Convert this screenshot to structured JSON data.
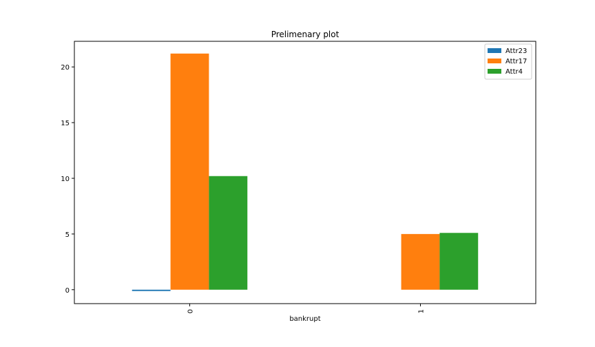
{
  "chart_data": {
    "type": "bar",
    "title": "Prelimenary plot",
    "xlabel": "bankrupt",
    "ylabel": "",
    "categories": [
      "0",
      "1"
    ],
    "series": [
      {
        "name": "Attr23",
        "color": "#1f77b4",
        "values": [
          -0.12,
          0.0
        ]
      },
      {
        "name": "Attr17",
        "color": "#ff7f0e",
        "values": [
          21.2,
          5.0
        ]
      },
      {
        "name": "Attr4",
        "color": "#2ca02c",
        "values": [
          10.2,
          5.1
        ]
      }
    ],
    "ylim": [
      -1.25,
      22.3
    ],
    "yticks": [
      0,
      5,
      10,
      15,
      20
    ],
    "x_tick_rotation": "vertical",
    "legend_position": "top-right",
    "grid": false
  }
}
